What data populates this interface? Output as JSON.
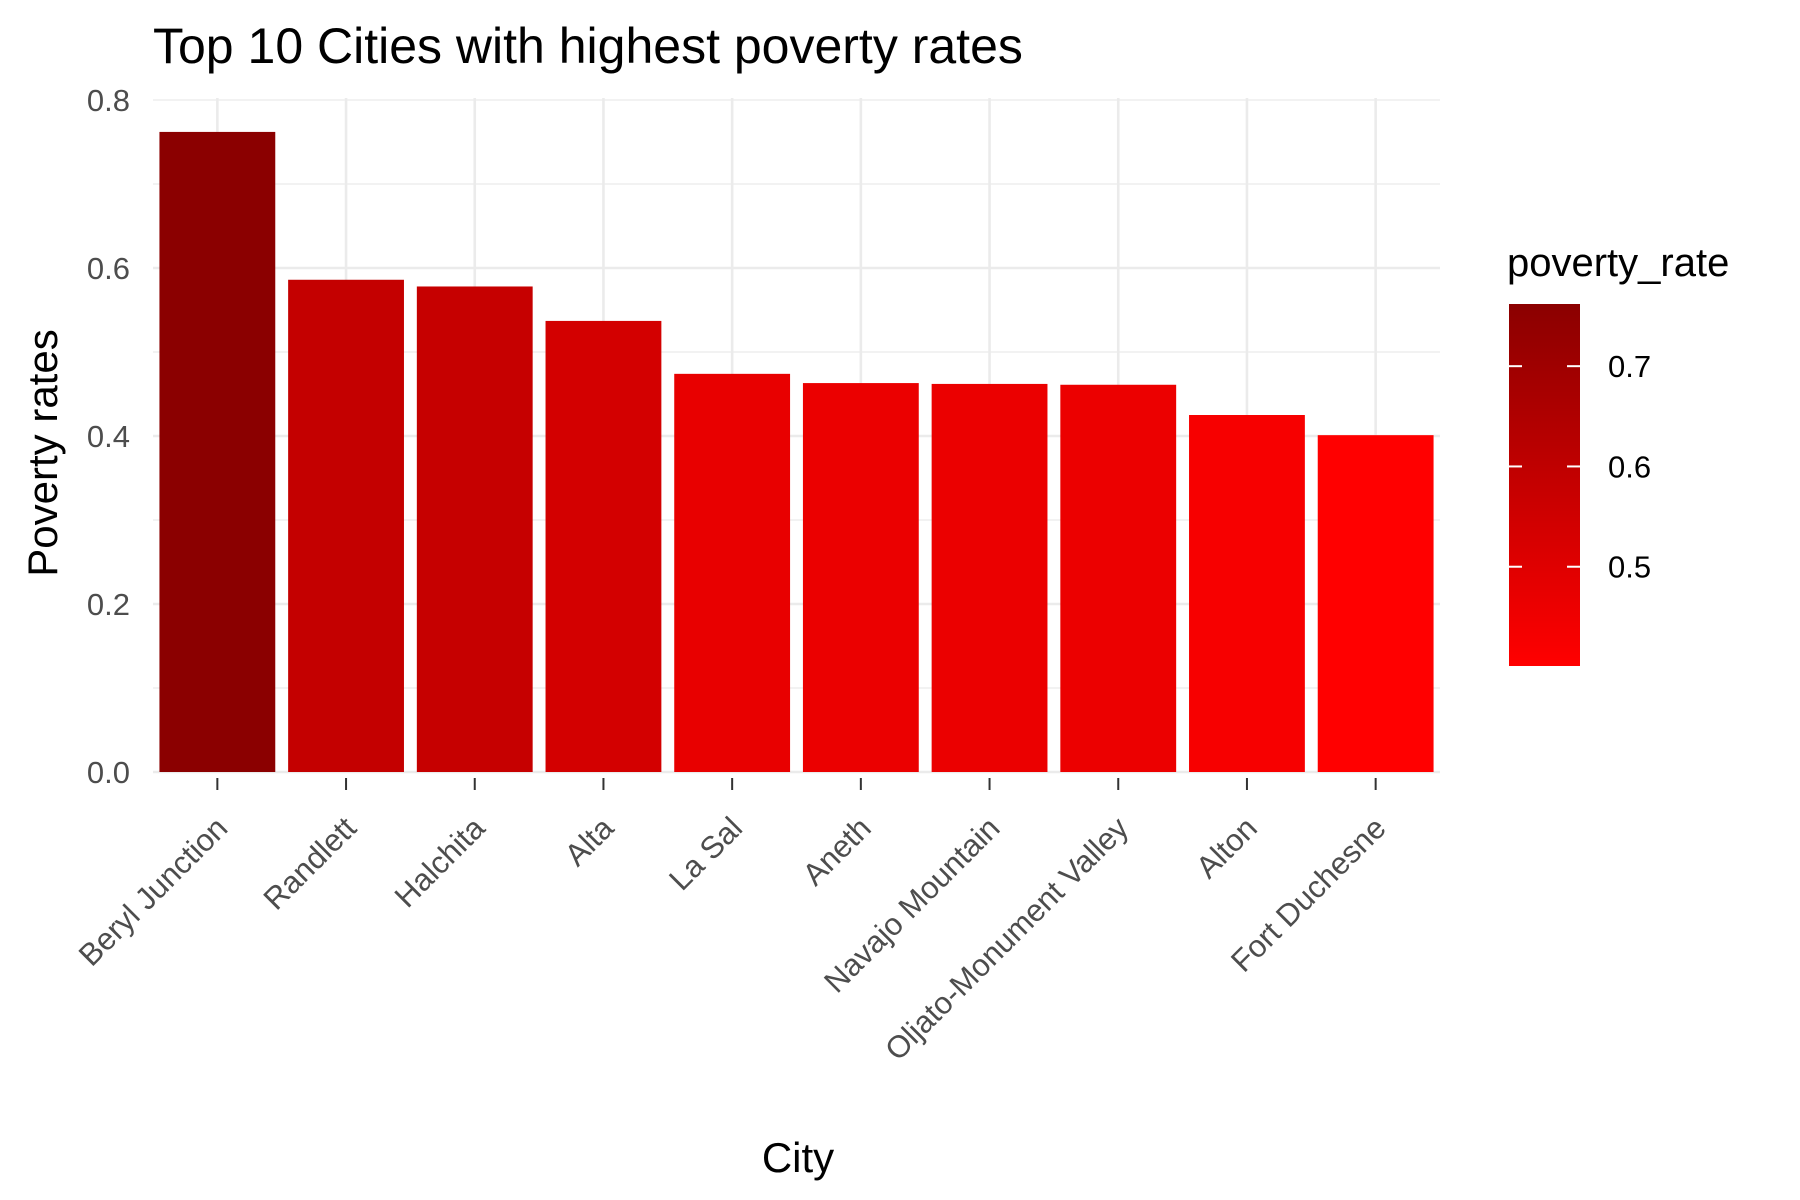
{
  "chart_data": {
    "type": "bar",
    "title": "Top 10 Cities with highest poverty rates",
    "xlabel": "City",
    "ylabel": "Poverty rates",
    "categories": [
      "Beryl Junction",
      "Randlett",
      "Halchita",
      "Alta",
      "La Sal",
      "Aneth",
      "Navajo Mountain",
      "Oljato-Monument Valley",
      "Alton",
      "Fort Duchesne"
    ],
    "values": [
      0.762,
      0.586,
      0.578,
      0.537,
      0.474,
      0.463,
      0.462,
      0.461,
      0.425,
      0.401
    ],
    "ylim": [
      0,
      0.8
    ],
    "yticks": [
      "0.0",
      "0.2",
      "0.4",
      "0.6",
      "0.8"
    ],
    "grid": true,
    "fill_scale": {
      "name": "poverty_rate",
      "low_color": "#ff0000",
      "high_color": "#8b0000",
      "range": [
        0.401,
        0.762
      ],
      "breaks": [
        0.5,
        0.6,
        0.7
      ],
      "labels": [
        "0.5",
        "0.6",
        "0.7"
      ]
    },
    "legend_position": "right"
  }
}
